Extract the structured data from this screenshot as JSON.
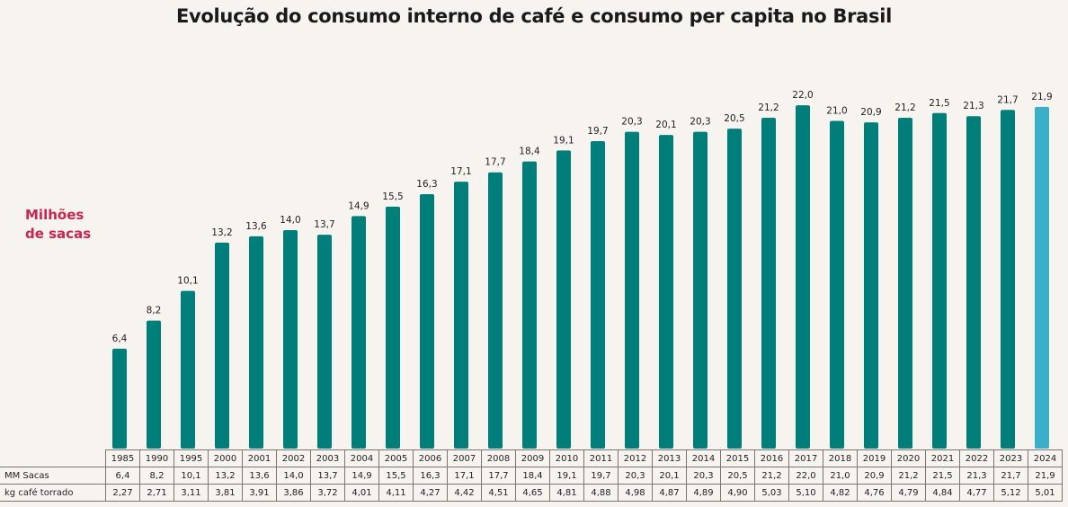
{
  "chart_data": {
    "type": "bar",
    "title": "Evolução do consumo interno de café e consumo per capita no Brasil",
    "ylabel": "Milhões de sacas",
    "ylabel_lines": [
      "Milhões",
      "de sacas"
    ],
    "xlabel": "",
    "ylim": [
      0,
      22
    ],
    "grid": false,
    "categories": [
      "1985",
      "1990",
      "1995",
      "2000",
      "2001",
      "2002",
      "2003",
      "2004",
      "2005",
      "2006",
      "2007",
      "2008",
      "2009",
      "2010",
      "2011",
      "2012",
      "2013",
      "2014",
      "2015",
      "2016",
      "2017",
      "2018",
      "2019",
      "2020",
      "2021",
      "2022",
      "2023",
      "2024"
    ],
    "series": [
      {
        "name": "MM Sacas",
        "values": [
          6.4,
          8.2,
          10.1,
          13.2,
          13.6,
          14.0,
          13.7,
          14.9,
          15.5,
          16.3,
          17.1,
          17.7,
          18.4,
          19.1,
          19.7,
          20.3,
          20.1,
          20.3,
          20.5,
          21.2,
          22.0,
          21.0,
          20.9,
          21.2,
          21.5,
          21.3,
          21.7,
          21.9
        ]
      },
      {
        "name": "kg café torrado",
        "values": [
          2.27,
          2.71,
          3.11,
          3.81,
          3.91,
          3.86,
          3.72,
          4.01,
          4.11,
          4.27,
          4.42,
          4.51,
          4.65,
          4.81,
          4.88,
          4.98,
          4.87,
          4.89,
          4.9,
          5.03,
          5.1,
          4.82,
          4.76,
          4.79,
          4.84,
          4.77,
          5.12,
          5.01
        ]
      }
    ],
    "data_labels": [
      "6,4",
      "8,2",
      "10,1",
      "13,2",
      "13,6",
      "14,0",
      "13,7",
      "14,9",
      "15,5",
      "16,3",
      "17,1",
      "17,7",
      "18,4",
      "19,1",
      "19,7",
      "20,3",
      "20,1",
      "20,3",
      "20,5",
      "21,2",
      "22,0",
      "21,0",
      "20,9",
      "21,2",
      "21,5",
      "21,3",
      "21,7",
      "21,9"
    ],
    "table": {
      "row_labels": [
        "MM Sacas",
        "kg café torrado"
      ],
      "mm_sacas": [
        "6,4",
        "8,2",
        "10,1",
        "13,2",
        "13,6",
        "14,0",
        "13,7",
        "14,9",
        "15,5",
        "16,3",
        "17,1",
        "17,7",
        "18,4",
        "19,1",
        "19,7",
        "20,3",
        "20,1",
        "20,3",
        "20,5",
        "21,2",
        "22,0",
        "21,0",
        "20,9",
        "21,2",
        "21,5",
        "21,3",
        "21,7",
        "21,9"
      ],
      "kg_cafe": [
        "2,27",
        "2,71",
        "3,11",
        "3,81",
        "3,91",
        "3,86",
        "3,72",
        "4,01",
        "4,11",
        "4,27",
        "4,42",
        "4,51",
        "4,65",
        "4,81",
        "4,88",
        "4,98",
        "4,87",
        "4,89",
        "4,90",
        "5,03",
        "5,10",
        "4,82",
        "4,76",
        "4,79",
        "4,84",
        "4,77",
        "5,12",
        "5,01"
      ]
    },
    "colors": {
      "bar": "#007f7a",
      "bar_highlight": "#3aafc9",
      "ylabel": "#c8254f"
    },
    "highlight_category": "2024"
  }
}
